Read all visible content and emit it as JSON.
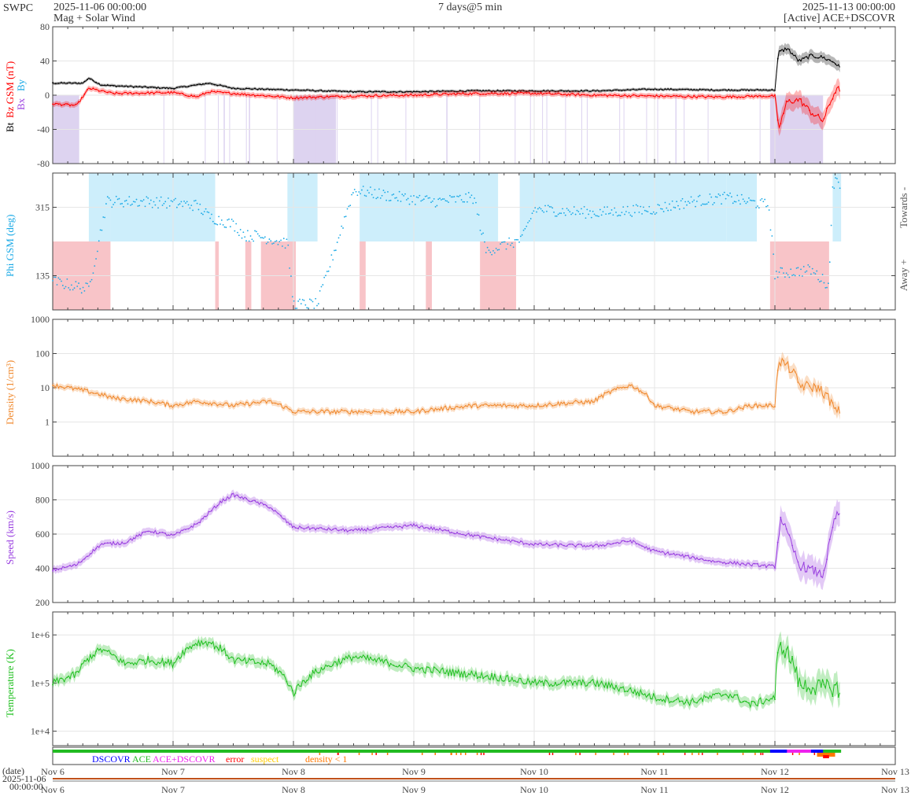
{
  "header": {
    "org": "SWPC",
    "start": "2025-11-06 00:00:00",
    "subtitle": "Mag + Solar Wind",
    "span": "7 days@5 min",
    "end": "2025-11-13 00:00:00",
    "source": "[Active] ACE+DSCOVR"
  },
  "colors": {
    "bt": "#000000",
    "bz": "#ff0000",
    "phi": "#19a9e6",
    "density": "#f08a30",
    "speed": "#9a40e0",
    "temperature": "#22c022",
    "towards_fill": "#cdeefb",
    "away_fill": "#f8c4c8",
    "bz_neg_fill": "#ddd3f0",
    "dscovr": "#0000ff",
    "ace": "#22bb22",
    "acedscovr": "#ee22ee",
    "error": "#ff0000",
    "suspect": "#ffcc00",
    "density_lt1": "#ff7700"
  },
  "legend": {
    "dscovr": "DSCOVR",
    "ace": "ACE",
    "acedscovr": "ACE+DSCOVR",
    "error": "error",
    "suspect": "suspect",
    "density_lt1": "density < 1"
  },
  "footer": {
    "date_label": "(date)",
    "date_value": "2025-11-06",
    "time_value": "00:00:00"
  },
  "x_ticks": [
    "Nov 6",
    "Nov 7",
    "Nov 8",
    "Nov 9",
    "Nov 10",
    "Nov 11",
    "Nov 12",
    "Nov 13"
  ],
  "chart_data": [
    {
      "type": "line",
      "ylabel_parts": [
        "Bt",
        "Bz GSM (nT)"
      ],
      "side_label_bx": "Bx",
      "side_label_by": "By",
      "ylim": [
        -80,
        80
      ],
      "yticks": [
        80,
        40,
        0,
        -40,
        -80
      ],
      "xlim_days": [
        0,
        7
      ],
      "series": [
        {
          "name": "Bt",
          "color_key": "bt",
          "x": [
            0,
            0.25,
            0.3,
            0.4,
            0.5,
            1,
            1.2,
            1.3,
            1.5,
            2,
            2.5,
            3,
            3.5,
            4,
            4.5,
            5,
            5.5,
            6,
            6.03,
            6.1,
            6.2,
            6.3,
            6.4,
            6.5,
            6.55
          ],
          "y": [
            14,
            14,
            20,
            12,
            11,
            8,
            12,
            14,
            8,
            6,
            4,
            4,
            5,
            5,
            5,
            7,
            6,
            6,
            50,
            55,
            40,
            46,
            44,
            38,
            30
          ]
        },
        {
          "name": "Bz GSM",
          "color_key": "bz",
          "x": [
            0,
            0.2,
            0.3,
            0.5,
            1,
            1.2,
            1.3,
            1.5,
            2,
            2.5,
            3,
            3.5,
            4,
            4.5,
            5,
            5.5,
            6,
            6.03,
            6.1,
            6.2,
            6.3,
            6.4,
            6.5,
            6.55
          ],
          "y": [
            -10,
            -12,
            8,
            2,
            3,
            -2,
            4,
            2,
            -3,
            -1,
            0,
            2,
            2,
            0,
            -1,
            -2,
            -1,
            -40,
            -8,
            -5,
            -20,
            -30,
            5,
            8
          ]
        }
      ]
    },
    {
      "type": "scatter",
      "ylabel": "Phi GSM (deg)",
      "right_labels": [
        "Towards -",
        "Away +"
      ],
      "yticks": [
        315,
        135
      ],
      "ylim": [
        45,
        405
      ],
      "xlim_days": [
        0,
        7
      ]
    },
    {
      "type": "line",
      "ylabel": "Density (1/cm³)",
      "scale": "log",
      "ylim": [
        0.1,
        1000
      ],
      "yticks": [
        1000,
        100,
        10,
        1
      ],
      "ytick_labels": [
        "1000",
        "100",
        "10",
        "1"
      ],
      "xlim_days": [
        0,
        7
      ],
      "series": [
        {
          "name": "Density",
          "color_key": "density",
          "x": [
            0,
            0.2,
            0.5,
            0.8,
            1.0,
            1.2,
            1.5,
            1.8,
            2.0,
            2.5,
            3.0,
            3.5,
            4.0,
            4.5,
            4.8,
            5.0,
            5.3,
            5.6,
            5.8,
            6.0,
            6.05,
            6.2,
            6.35,
            6.5,
            6.55
          ],
          "y": [
            12,
            9,
            5,
            4,
            3,
            4,
            3,
            4,
            2,
            2,
            2,
            3,
            3,
            4,
            12,
            3,
            2,
            2,
            3,
            3,
            60,
            12,
            10,
            2,
            2
          ]
        }
      ]
    },
    {
      "type": "line",
      "ylabel": "Speed (km/s)",
      "ylim": [
        200,
        1000
      ],
      "yticks": [
        1000,
        800,
        600,
        400,
        200
      ],
      "xlim_days": [
        0,
        7
      ],
      "series": [
        {
          "name": "Speed",
          "color_key": "speed",
          "x": [
            0,
            0.2,
            0.4,
            0.6,
            0.8,
            1.0,
            1.2,
            1.4,
            1.5,
            1.8,
            2.0,
            2.5,
            3.0,
            3.5,
            4.0,
            4.5,
            4.8,
            5.0,
            5.5,
            6.0,
            6.05,
            6.2,
            6.4,
            6.5,
            6.55
          ],
          "y": [
            390,
            420,
            540,
            550,
            620,
            590,
            660,
            790,
            830,
            760,
            640,
            620,
            650,
            590,
            540,
            530,
            560,
            500,
            440,
            410,
            700,
            420,
            360,
            700,
            720
          ]
        }
      ]
    },
    {
      "type": "line",
      "ylabel": "Temperature (K)",
      "scale": "log",
      "ylim": [
        5000,
        3000000
      ],
      "yticks": [
        1000000,
        100000,
        10000
      ],
      "ytick_labels": [
        "1e+6",
        "1e+5",
        "1e+4"
      ],
      "xlim_days": [
        0,
        7
      ],
      "series": [
        {
          "name": "Temperature",
          "color_key": "temperature",
          "x": [
            0,
            0.2,
            0.4,
            0.6,
            0.8,
            1.0,
            1.2,
            1.3,
            1.5,
            1.8,
            2.0,
            2.5,
            3.0,
            3.5,
            4.0,
            4.5,
            4.8,
            5.0,
            5.3,
            5.6,
            5.8,
            6.0,
            6.05,
            6.2,
            6.4,
            6.5,
            6.55
          ],
          "y": [
            100000,
            150000,
            500000,
            250000,
            300000,
            250000,
            700000,
            700000,
            300000,
            250000,
            60000,
            350000,
            200000,
            150000,
            100000,
            100000,
            70000,
            50000,
            40000,
            60000,
            35000,
            50000,
            600000,
            90000,
            80000,
            80000,
            70000
          ]
        }
      ]
    }
  ]
}
